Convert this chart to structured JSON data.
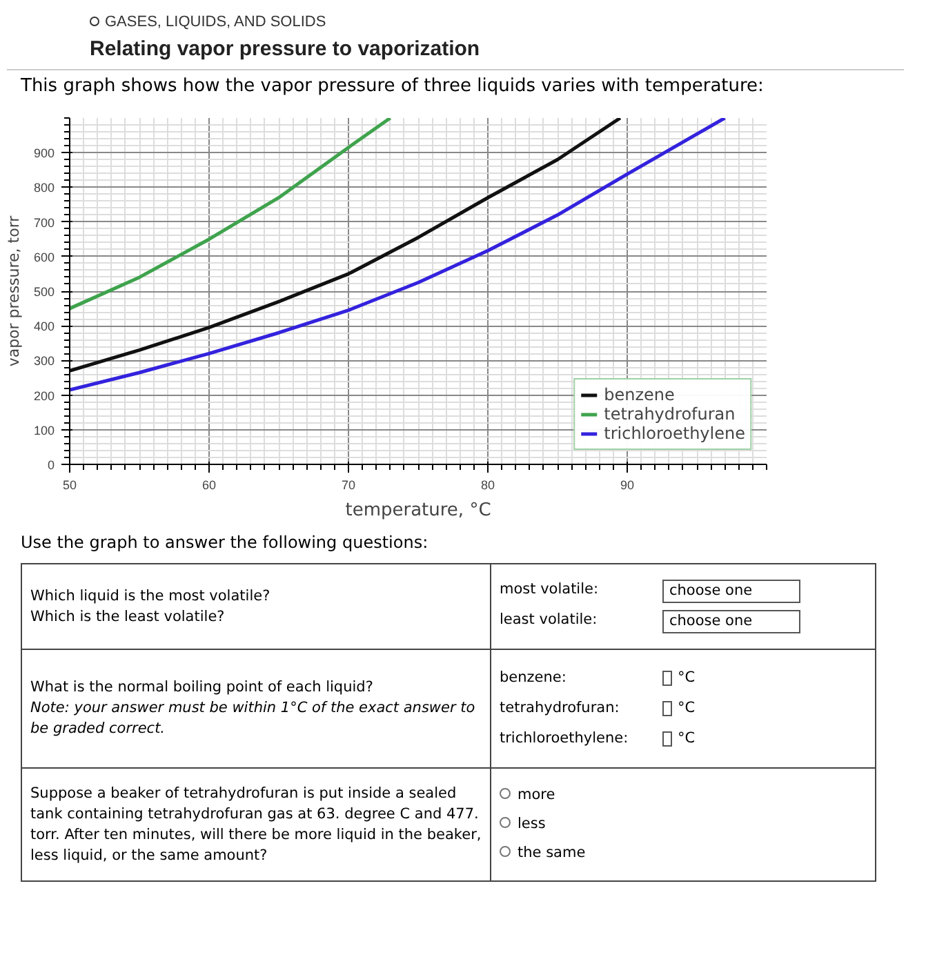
{
  "chart_data": {
    "type": "line",
    "subtitle": "GASES, LIQUIDS, AND SOLIDS",
    "title": "Relating vapor pressure to vaporization",
    "annotations": [
      "This graph shows how the vapor pressure of three liquids varies with temperature:",
      "Use the graph to answer the following questions:",
      "Which liquid is the most volatile?",
      "Which is the least volatile?",
      "most volatile:",
      "choose one",
      "least volatile:",
      "choose one",
      "What is the normal boiling point of each liquid?",
      "Note: your answer must be within 1°C of the exact answer to be graded correct.",
      "benzene:",
      "°C",
      "tetrahydrofuran:",
      "°C",
      "trichloroethylene:",
      "°C",
      "Suppose a beaker of tetrahydrofuran is put inside a sealed tank containing tetrahydrofuran gas at 63. degree C and 477. torr. After ten minutes, will there be more liquid in the beaker, less liquid, or the same amount?",
      "more",
      "less",
      "the same"
    ],
    "xlabel": "temperature, °C",
    "ylabel": "vapor pressure, torr",
    "xlim": [
      50,
      100
    ],
    "ylim": [
      0,
      1000
    ],
    "xticks": [
      50,
      60,
      70,
      80,
      90
    ],
    "yticks": [
      0,
      100,
      200,
      300,
      400,
      500,
      600,
      700,
      800,
      900
    ],
    "grid": true,
    "legend": "bottom right",
    "series": [
      {
        "name": "benzene",
        "color": "#111111",
        "x": [
          50,
          55,
          60,
          65,
          70,
          75,
          80,
          85,
          89.5
        ],
        "values": [
          270,
          330,
          395,
          470,
          550,
          655,
          770,
          880,
          1000
        ]
      },
      {
        "name": "tetrahydrofuran",
        "color": "#3fa34d",
        "x": [
          50,
          55,
          60,
          65,
          70,
          73
        ],
        "values": [
          450,
          540,
          650,
          770,
          915,
          1000
        ]
      },
      {
        "name": "trichloroethylene",
        "color": "#3322dd",
        "x": [
          50,
          55,
          60,
          65,
          70,
          75,
          80,
          85,
          90,
          97
        ],
        "values": [
          215,
          265,
          320,
          380,
          445,
          525,
          617,
          720,
          838,
          1000
        ]
      }
    ]
  }
}
